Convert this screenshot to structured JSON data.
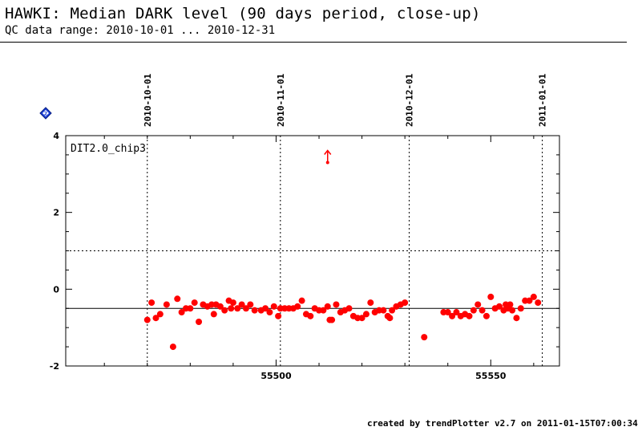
{
  "title": "HAWKI: Median DARK level (90 days period, close-up)",
  "subtitle": "QC data range: 2010-10-01 ... 2010-12-31",
  "credit": "created by trendPlotter v2.7 on 2011-01-15T07:00:34",
  "help_icon": "help-diamond-icon",
  "chart_data": {
    "type": "scatter",
    "panel_label": "DIT2.0_chip3",
    "xlim": [
      55451,
      55566
    ],
    "ylim": [
      -2,
      4
    ],
    "x_ticks": [
      55500,
      55550
    ],
    "y_ticks": [
      -2,
      0,
      2,
      4
    ],
    "date_markers": [
      {
        "label": "2010-10-01",
        "x": 55470
      },
      {
        "label": "2010-11-01",
        "x": 55501
      },
      {
        "label": "2010-12-01",
        "x": 55531
      },
      {
        "label": "2011-01-01",
        "x": 55562
      }
    ],
    "reference_lines": {
      "mean": -0.5,
      "threshold": 1.0
    },
    "outlier_arrow": {
      "x": 55512,
      "y": 3.3
    },
    "marker_color": "#ff0000",
    "points": [
      [
        55470.0,
        -0.8
      ],
      [
        55471.0,
        -0.35
      ],
      [
        55472.0,
        -0.75
      ],
      [
        55473.0,
        -0.65
      ],
      [
        55474.5,
        -0.4
      ],
      [
        55476.0,
        -1.5
      ],
      [
        55477.0,
        -0.25
      ],
      [
        55478.0,
        -0.6
      ],
      [
        55479.0,
        -0.5
      ],
      [
        55480.0,
        -0.5
      ],
      [
        55481.0,
        -0.35
      ],
      [
        55482.0,
        -0.85
      ],
      [
        55483.0,
        -0.4
      ],
      [
        55484.0,
        -0.45
      ],
      [
        55485.0,
        -0.4
      ],
      [
        55485.5,
        -0.65
      ],
      [
        55486.0,
        -0.4
      ],
      [
        55487.0,
        -0.45
      ],
      [
        55488.0,
        -0.55
      ],
      [
        55489.0,
        -0.3
      ],
      [
        55489.5,
        -0.5
      ],
      [
        55490.0,
        -0.35
      ],
      [
        55491.0,
        -0.5
      ],
      [
        55492.0,
        -0.4
      ],
      [
        55493.0,
        -0.5
      ],
      [
        55494.0,
        -0.4
      ],
      [
        55495.0,
        -0.55
      ],
      [
        55496.5,
        -0.55
      ],
      [
        55497.5,
        -0.5
      ],
      [
        55498.5,
        -0.6
      ],
      [
        55499.5,
        -0.45
      ],
      [
        55500.5,
        -0.7
      ],
      [
        55501.0,
        -0.5
      ],
      [
        55502.0,
        -0.5
      ],
      [
        55503.0,
        -0.5
      ],
      [
        55504.0,
        -0.5
      ],
      [
        55505.0,
        -0.45
      ],
      [
        55506.0,
        -0.3
      ],
      [
        55507.0,
        -0.65
      ],
      [
        55508.0,
        -0.7
      ],
      [
        55509.0,
        -0.5
      ],
      [
        55510.0,
        -0.55
      ],
      [
        55511.0,
        -0.55
      ],
      [
        55512.0,
        -0.45
      ],
      [
        55512.5,
        -0.8
      ],
      [
        55513.0,
        -0.8
      ],
      [
        55514.0,
        -0.4
      ],
      [
        55515.0,
        -0.6
      ],
      [
        55516.0,
        -0.55
      ],
      [
        55517.0,
        -0.5
      ],
      [
        55518.0,
        -0.7
      ],
      [
        55519.0,
        -0.75
      ],
      [
        55520.0,
        -0.75
      ],
      [
        55521.0,
        -0.65
      ],
      [
        55522.0,
        -0.35
      ],
      [
        55523.0,
        -0.6
      ],
      [
        55524.0,
        -0.55
      ],
      [
        55525.0,
        -0.55
      ],
      [
        55526.0,
        -0.7
      ],
      [
        55526.5,
        -0.75
      ],
      [
        55527.0,
        -0.55
      ],
      [
        55528.0,
        -0.45
      ],
      [
        55529.0,
        -0.4
      ],
      [
        55530.0,
        -0.35
      ],
      [
        55534.5,
        -1.25
      ],
      [
        55539.0,
        -0.6
      ],
      [
        55540.0,
        -0.6
      ],
      [
        55541.0,
        -0.7
      ],
      [
        55542.0,
        -0.6
      ],
      [
        55543.0,
        -0.7
      ],
      [
        55544.0,
        -0.65
      ],
      [
        55545.0,
        -0.7
      ],
      [
        55546.0,
        -0.55
      ],
      [
        55547.0,
        -0.4
      ],
      [
        55548.0,
        -0.55
      ],
      [
        55549.0,
        -0.7
      ],
      [
        55550.0,
        -0.2
      ],
      [
        55551.0,
        -0.5
      ],
      [
        55552.0,
        -0.45
      ],
      [
        55553.0,
        -0.55
      ],
      [
        55553.5,
        -0.4
      ],
      [
        55554.0,
        -0.5
      ],
      [
        55554.5,
        -0.4
      ],
      [
        55555.0,
        -0.55
      ],
      [
        55556.0,
        -0.75
      ],
      [
        55557.0,
        -0.5
      ],
      [
        55558.0,
        -0.3
      ],
      [
        55559.0,
        -0.3
      ],
      [
        55560.0,
        -0.2
      ],
      [
        55561.0,
        -0.35
      ]
    ]
  }
}
